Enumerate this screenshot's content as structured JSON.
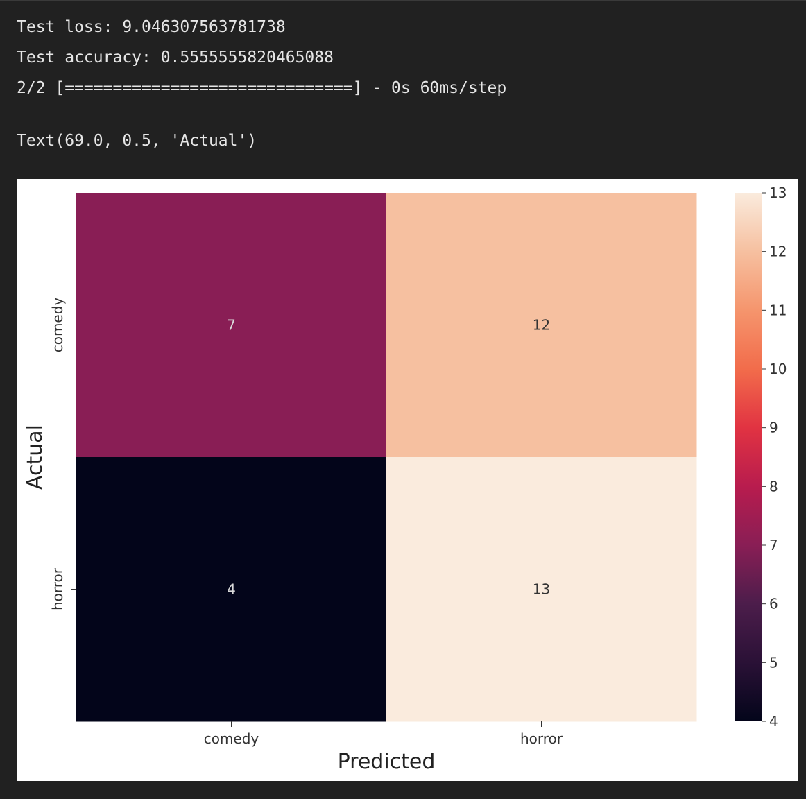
{
  "output": {
    "lines": [
      "Test loss: 9.046307563781738",
      "Test accuracy: 0.5555555820465088",
      "2/2 [==============================] - 0s 60ms/step",
      "Text(69.0, 0.5, 'Actual')"
    ]
  },
  "chart_data": {
    "type": "heatmap",
    "title": "",
    "xlabel": "Predicted",
    "ylabel": "Actual",
    "x_categories": [
      "comedy",
      "horror"
    ],
    "y_categories": [
      "comedy",
      "horror"
    ],
    "values": [
      [
        7,
        12
      ],
      [
        4,
        13
      ]
    ],
    "annotations": [
      [
        "7",
        "12"
      ],
      [
        "4",
        "13"
      ]
    ],
    "colorbar": {
      "min": 4,
      "max": 13,
      "ticks": [
        4,
        5,
        6,
        7,
        8,
        9,
        10,
        11,
        12,
        13
      ],
      "tick_labels": [
        "4",
        "5",
        "6",
        "7",
        "8",
        "9",
        "10",
        "11",
        "12",
        "13"
      ],
      "colormap": "rocket"
    },
    "colors": {
      "cell_7": "#891e55",
      "cell_12": "#f6c0a0",
      "cell_4": "#03051a",
      "cell_13": "#faebdd",
      "annotation_text": "#d9d9d9",
      "annotation_text_light": "#333333"
    }
  }
}
